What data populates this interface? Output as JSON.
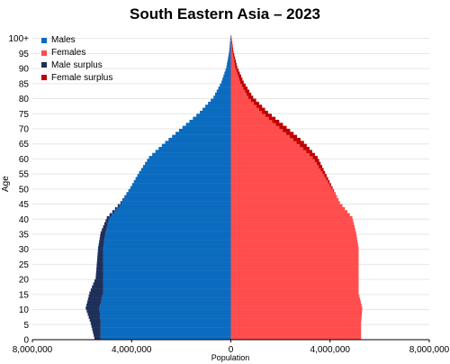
{
  "chart_data": {
    "type": "bar",
    "orientation": "horizontal",
    "title": "South Eastern Asia – 2023",
    "xlabel": "Population",
    "ylabel": "Age",
    "xlim": [
      -8000000,
      8000000
    ],
    "x_ticks": [
      {
        "value": -8000000,
        "label": "8,000,000"
      },
      {
        "value": -4000000,
        "label": "4,000,000"
      },
      {
        "value": 0,
        "label": "0"
      },
      {
        "value": 4000000,
        "label": "4,000,000"
      },
      {
        "value": 8000000,
        "label": "8,000,000"
      }
    ],
    "y_ticks": [
      "0",
      "5",
      "10",
      "15",
      "20",
      "25",
      "30",
      "35",
      "40",
      "45",
      "50",
      "55",
      "60",
      "65",
      "70",
      "75",
      "80",
      "85",
      "90",
      "95",
      "100+"
    ],
    "ylim": [
      0,
      100
    ],
    "grid": true,
    "legend_position": "top-left",
    "legend": [
      {
        "name": "Males",
        "color": "#0b6bbf"
      },
      {
        "name": "Females",
        "color": "#ff4d4d"
      },
      {
        "name": "Male surplus",
        "color": "#1e2f5a"
      },
      {
        "name": "Female surplus",
        "color": "#c00000"
      }
    ],
    "age_key": [
      0,
      5,
      10,
      15,
      20,
      25,
      30,
      35,
      40,
      45,
      50,
      55,
      60,
      65,
      70,
      75,
      80,
      85,
      90,
      95,
      100
    ],
    "males_key": [
      5500000,
      5650000,
      5850000,
      5700000,
      5450000,
      5400000,
      5350000,
      5250000,
      5000000,
      4450000,
      4050000,
      3700000,
      3300000,
      2650000,
      1950000,
      1250000,
      700000,
      380000,
      180000,
      70000,
      15000
    ],
    "females_key": [
      5250000,
      5250000,
      5300000,
      5150000,
      5150000,
      5150000,
      5150000,
      5050000,
      4900000,
      4400000,
      4100000,
      3800000,
      3500000,
      2950000,
      2250000,
      1500000,
      900000,
      520000,
      260000,
      110000,
      25000
    ]
  }
}
